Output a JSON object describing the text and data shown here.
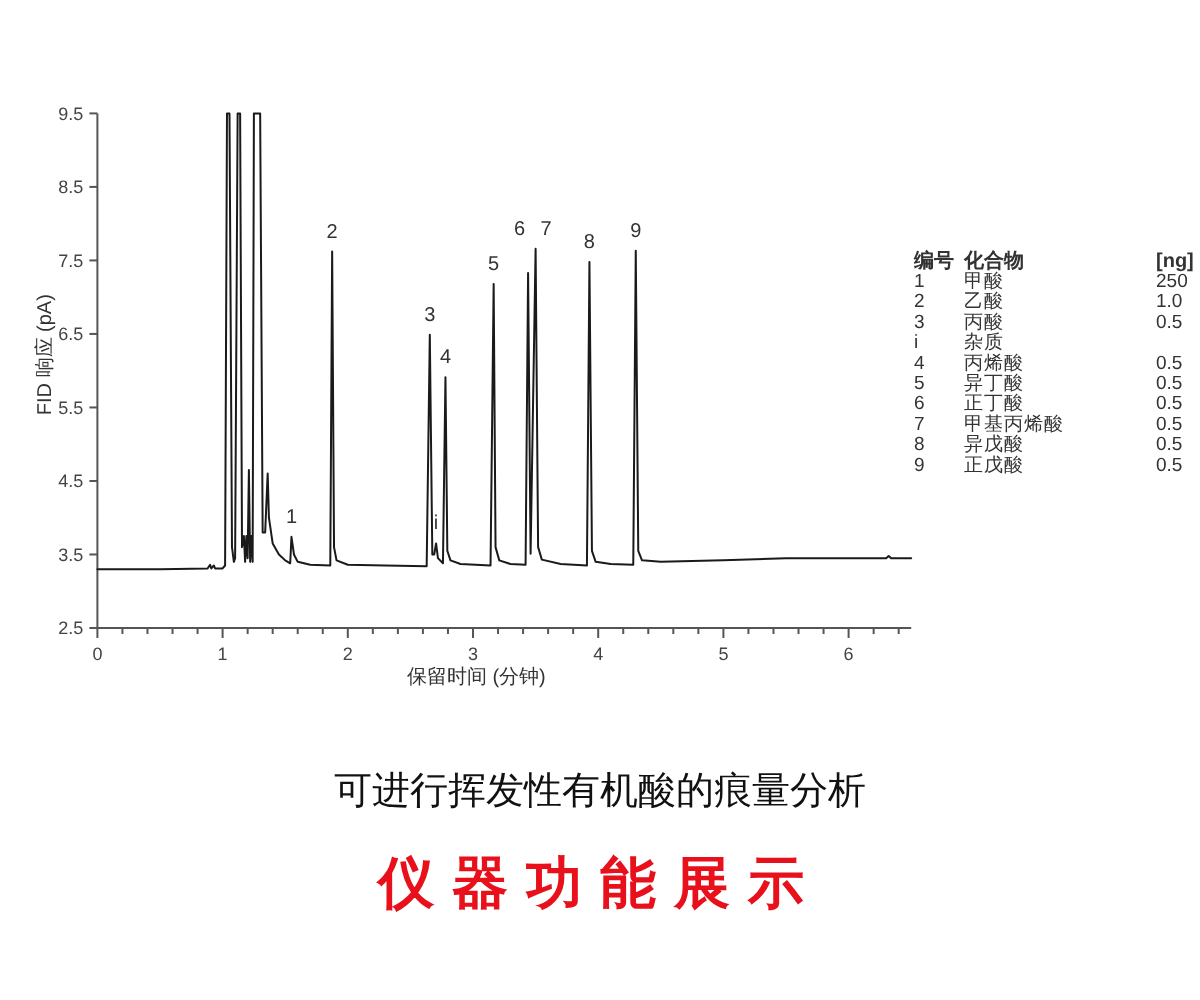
{
  "chart_data": {
    "type": "line",
    "title": "仪器功能展示",
    "subtitle": "可进行挥发性有机酸的痕量分析",
    "xlabel": "保留时间 (分钟)",
    "ylabel": "FID 响应 (pA)",
    "x": [
      0,
      0.5,
      0.88,
      0.9,
      0.91,
      0.93,
      0.94,
      1.0,
      1.02,
      1.035,
      1.055,
      1.075,
      1.09,
      1.1,
      1.12,
      1.14,
      1.155,
      1.17,
      1.18,
      1.19,
      1.2,
      1.21,
      1.22,
      1.23,
      1.24,
      1.25,
      1.3,
      1.32,
      1.34,
      1.36,
      1.37,
      1.4,
      1.45,
      1.5,
      1.54,
      1.55,
      1.57,
      1.6,
      1.7,
      1.86,
      1.875,
      1.89,
      1.91,
      2.0,
      2.3,
      2.63,
      2.655,
      2.675,
      2.69,
      2.705,
      2.72,
      2.76,
      2.78,
      2.795,
      2.82,
      2.9,
      3.14,
      3.165,
      3.18,
      3.21,
      3.3,
      3.42,
      3.44,
      3.46,
      3.5,
      3.52,
      3.55,
      3.7,
      3.91,
      3.93,
      3.95,
      3.98,
      4.1,
      4.28,
      4.3,
      4.32,
      4.35,
      4.5,
      5.0,
      5.5,
      6.0,
      6.3,
      6.32,
      6.34,
      6.5
    ],
    "series": [
      {
        "color": "#1a1a1a",
        "values": [
          3.3,
          3.3,
          3.31,
          3.36,
          3.31,
          3.35,
          3.31,
          3.31,
          3.35,
          9.5,
          9.5,
          3.6,
          3.4,
          3.45,
          9.5,
          9.5,
          3.6,
          3.75,
          3.4,
          3.75,
          3.45,
          4.65,
          3.4,
          3.75,
          3.4,
          9.5,
          9.5,
          3.8,
          3.8,
          4.6,
          4.0,
          3.65,
          3.5,
          3.42,
          3.38,
          3.74,
          3.5,
          3.4,
          3.36,
          3.35,
          7.62,
          3.6,
          3.42,
          3.36,
          3.35,
          3.34,
          6.49,
          3.5,
          3.5,
          3.65,
          3.45,
          3.38,
          5.91,
          3.55,
          3.42,
          3.37,
          3.35,
          7.18,
          3.6,
          3.42,
          3.37,
          3.36,
          7.33,
          3.51,
          7.66,
          3.6,
          3.43,
          3.37,
          3.35,
          7.48,
          3.55,
          3.4,
          3.37,
          3.36,
          7.63,
          3.55,
          3.42,
          3.4,
          3.42,
          3.45,
          3.45,
          3.45,
          3.48,
          3.45,
          3.45
        ]
      }
    ],
    "xlim": [
      0,
      6.5
    ],
    "ylim": [
      2.5,
      9.5
    ],
    "xticks": [
      0,
      {
        "value": 0.2,
        "label": null
      },
      {
        "value": 0.4,
        "label": null
      },
      {
        "value": 0.6,
        "label": null
      },
      {
        "value": 0.8,
        "label": null
      },
      1,
      {
        "value": 1.2,
        "label": null
      },
      {
        "value": 1.4,
        "label": null
      },
      {
        "value": 1.6,
        "label": null
      },
      {
        "value": 1.8,
        "label": null
      },
      2,
      {
        "value": 2.2,
        "label": null
      },
      {
        "value": 2.4,
        "label": null
      },
      {
        "value": 2.6,
        "label": null
      },
      {
        "value": 2.8,
        "label": null
      },
      3,
      {
        "value": 3.2,
        "label": null
      },
      {
        "value": 3.4,
        "label": null
      },
      {
        "value": 3.6,
        "label": null
      },
      {
        "value": 3.8,
        "label": null
      },
      4,
      {
        "value": 4.2,
        "label": null
      },
      {
        "value": 4.4,
        "label": null
      },
      {
        "value": 4.6,
        "label": null
      },
      {
        "value": 4.8,
        "label": null
      },
      5,
      {
        "value": 5.2,
        "label": null
      },
      {
        "value": 5.4,
        "label": null
      },
      {
        "value": 5.6,
        "label": null
      },
      {
        "value": 5.8,
        "label": null
      },
      6,
      {
        "value": 6.2,
        "label": null
      },
      {
        "value": 6.4,
        "label": null
      }
    ],
    "yticks": [
      2.5,
      3.5,
      4.5,
      5.5,
      6.5,
      7.5,
      8.5,
      9.5
    ],
    "annotations": [
      {
        "text": "1",
        "x": 1.55,
        "y": 3.74
      },
      {
        "text": "2",
        "x": 1.875,
        "y": 7.62
      },
      {
        "text": "3",
        "x": 2.655,
        "y": 6.49
      },
      {
        "text": "i",
        "x": 2.705,
        "y": 3.65
      },
      {
        "text": "4",
        "x": 2.78,
        "y": 5.91
      },
      {
        "text": "5",
        "x": 3.165,
        "y": 7.18
      },
      {
        "text": "6",
        "x": 3.44,
        "y": 7.33
      },
      {
        "text": "7",
        "x": 3.5,
        "y": 7.66
      },
      {
        "text": "8",
        "x": 3.93,
        "y": 7.48
      },
      {
        "text": "9",
        "x": 4.3,
        "y": 7.63
      },
      "编号\t化合物\t[ng]",
      "1\t甲酸\t250",
      "2\t乙酸\t1.0",
      "3\t丙酸\t0.5",
      "i\t杂质",
      "4\t丙烯酸\t0.5",
      "5\t异丁酸\t0.5",
      "6\t正丁酸\t0.5",
      "7\t甲基丙烯酸\t0.5",
      "8\t异戊酸\t0.5",
      "9\t正戊酸\t0.5"
    ]
  }
}
